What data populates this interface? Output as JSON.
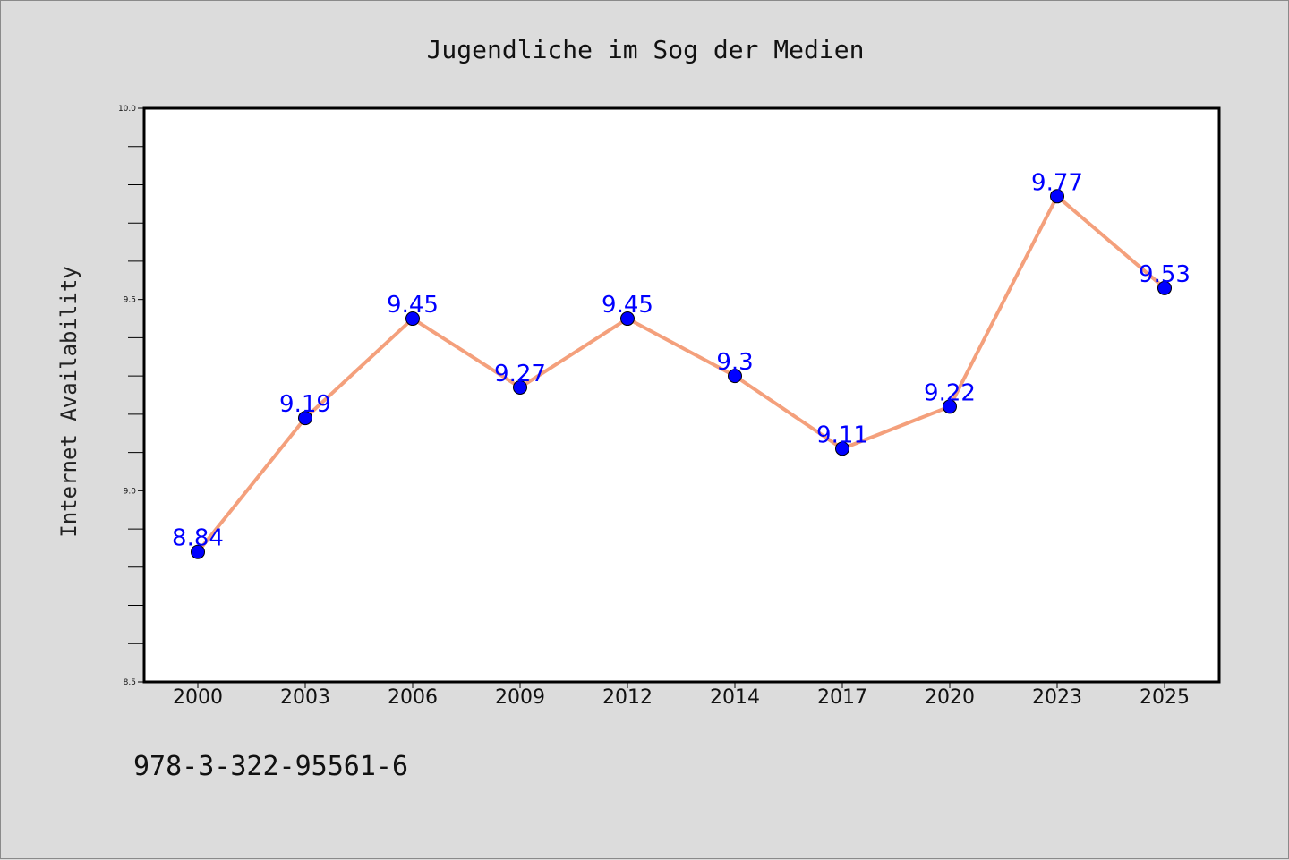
{
  "chart_data": {
    "type": "line",
    "title": "Jugendliche im Sog der Medien",
    "xlabel": "",
    "ylabel": "Internet Availability",
    "categories": [
      "2000",
      "2003",
      "2006",
      "2009",
      "2012",
      "2014",
      "2017",
      "2020",
      "2023",
      "2025"
    ],
    "series": [
      {
        "values": [
          8.84,
          9.19,
          9.45,
          9.27,
          9.45,
          9.3,
          9.11,
          9.22,
          9.77,
          9.53
        ],
        "labels": [
          "8.84",
          "9.19",
          "9.45",
          "9.27",
          "9.45",
          "9.3",
          "9.11",
          "9.22",
          "9.77",
          "9.53"
        ]
      }
    ],
    "ylim": [
      8.5,
      10.0
    ],
    "y_ticks": [
      "8.5",
      "9.0",
      "9.5",
      "10.0"
    ],
    "grid": false,
    "line_color": "#f4a07c",
    "marker_color": "#0000ff",
    "label_color": "#0000ff"
  },
  "footer": {
    "code": "978-3-322-95561-6"
  }
}
